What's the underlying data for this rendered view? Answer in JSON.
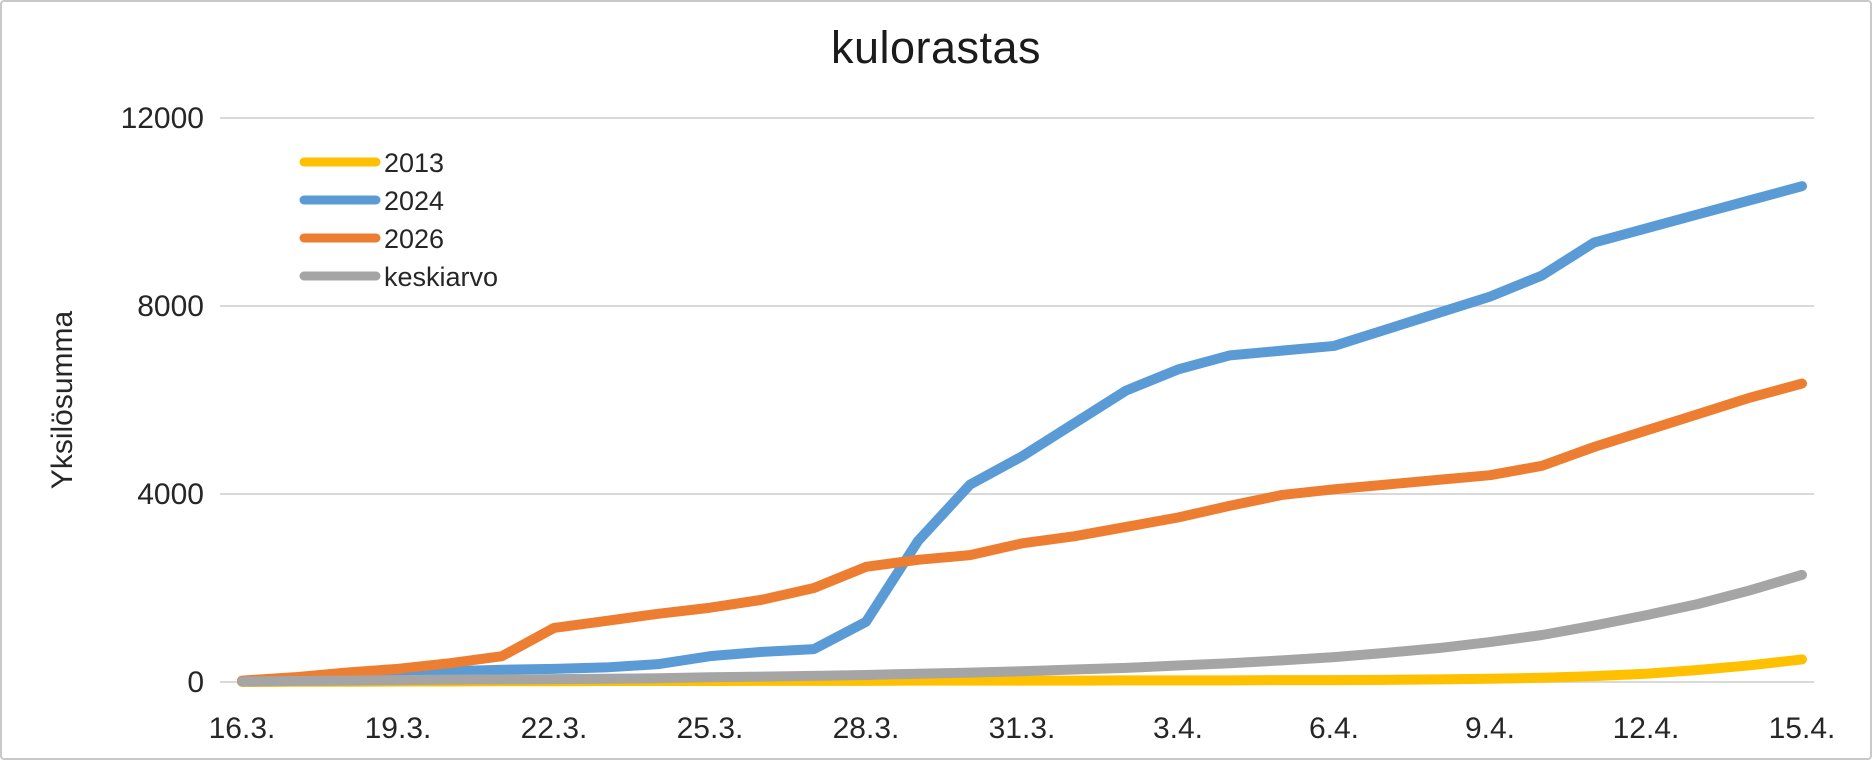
{
  "chart_data": {
    "type": "line",
    "title": "kulorastas",
    "xlabel": "",
    "ylabel": "Yksilösumma",
    "ylim": [
      0,
      12000
    ],
    "y_ticks": [
      0,
      4000,
      8000,
      12000
    ],
    "grid": "horizontal",
    "legend_position": "top-left-inside",
    "x_tick_labels": [
      "16.3.",
      "19.3.",
      "22.3.",
      "25.3.",
      "28.3.",
      "31.3.",
      "3.4.",
      "6.4.",
      "9.4.",
      "12.4.",
      "15.4."
    ],
    "categories": [
      "16.3.",
      "17.3.",
      "18.3.",
      "19.3.",
      "20.3.",
      "21.3.",
      "22.3.",
      "23.3.",
      "24.3.",
      "25.3.",
      "26.3.",
      "27.3.",
      "28.3.",
      "29.3.",
      "30.3.",
      "31.3.",
      "1.4.",
      "2.4.",
      "3.4.",
      "4.4.",
      "5.4.",
      "6.4.",
      "7.4.",
      "8.4.",
      "9.4.",
      "10.4.",
      "11.4.",
      "12.4.",
      "13.4.",
      "14.4.",
      "15.4."
    ],
    "series": [
      {
        "name": "2013",
        "color": "#FFC000",
        "values": [
          0,
          5,
          5,
          10,
          10,
          15,
          15,
          20,
          20,
          20,
          25,
          25,
          25,
          30,
          30,
          30,
          30,
          35,
          35,
          35,
          40,
          40,
          45,
          55,
          70,
          90,
          125,
          175,
          255,
          355,
          480
        ]
      },
      {
        "name": "2024",
        "color": "#5B9BD5",
        "values": [
          20,
          70,
          130,
          200,
          230,
          260,
          280,
          310,
          380,
          550,
          640,
          700,
          1280,
          3000,
          4200,
          4800,
          5500,
          6200,
          6650,
          6950,
          7050,
          7150,
          7500,
          7850,
          8200,
          8650,
          9350,
          9650,
          9950,
          10250,
          10550
        ]
      },
      {
        "name": "2026",
        "color": "#ED7D31",
        "values": [
          30,
          100,
          200,
          280,
          400,
          550,
          1150,
          1300,
          1450,
          1580,
          1750,
          2000,
          2450,
          2600,
          2700,
          2950,
          3100,
          3300,
          3500,
          3750,
          3980,
          4100,
          4200,
          4300,
          4400,
          4600,
          5000,
          5350,
          5700,
          6050,
          6350
        ]
      },
      {
        "name": "keskiarvo",
        "color": "#A5A5A5",
        "values": [
          10,
          20,
          30,
          40,
          50,
          55,
          60,
          70,
          80,
          100,
          115,
          130,
          150,
          175,
          200,
          230,
          265,
          300,
          350,
          400,
          460,
          530,
          620,
          720,
          850,
          1000,
          1200,
          1420,
          1660,
          1950,
          2280
        ]
      }
    ]
  },
  "colors": {
    "gridline": "#D9D9D9",
    "axis_text": "#262626",
    "title_text": "#1b1b1b",
    "border": "#c9c9c9",
    "background": "#ffffff"
  }
}
